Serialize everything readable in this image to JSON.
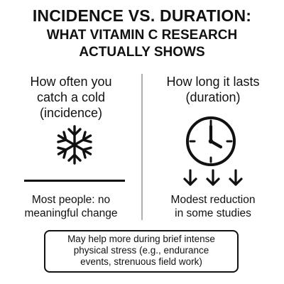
{
  "title": {
    "main": "INCIDENCE VS. DURATION:",
    "sub_line1": "WHAT VITAMIN C RESEARCH",
    "sub_line2": "ACTUALLY SHOWS"
  },
  "left": {
    "heading_line1": "How often you",
    "heading_line2": "catch a cold",
    "heading_line3": "(incidence)",
    "icon": "snowflake-icon",
    "caption_line1": "Most people: no",
    "caption_line2": "meaningful change"
  },
  "right": {
    "heading_line1": "How long it lasts",
    "heading_line2": "(duration)",
    "icon": "clock-icon",
    "arrows_icon": "down-arrows-icon",
    "caption_line1": "Modest reduction",
    "caption_line2": "in some studies"
  },
  "note": {
    "line1": "May help more during brief intense",
    "line2": "physical stress (e.g., endurance",
    "line3": "events, strenuous field work)"
  },
  "colors": {
    "ink": "#111111",
    "divider": "#b0b0b0",
    "background": "#ffffff"
  }
}
